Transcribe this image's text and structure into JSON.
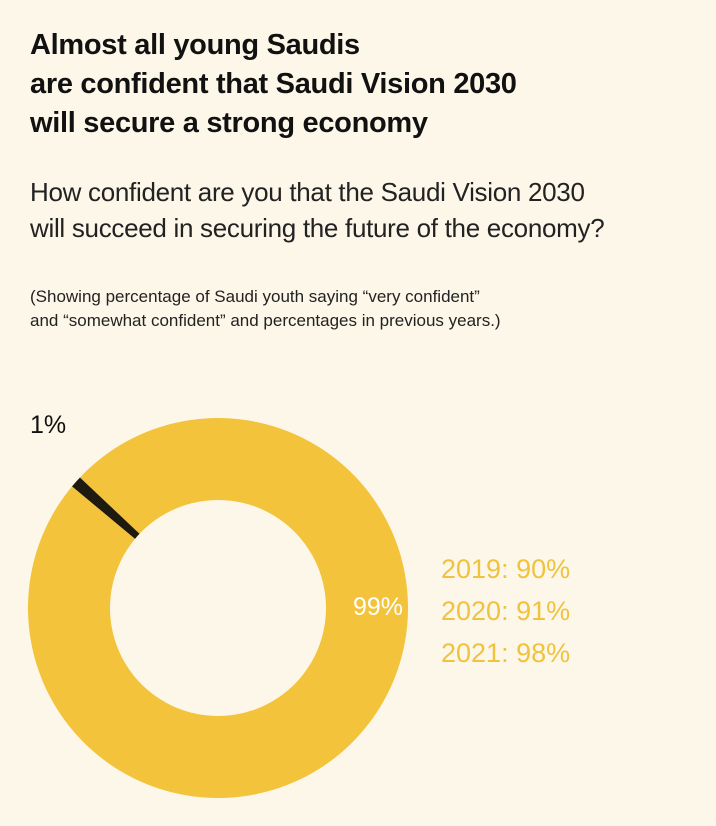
{
  "title_lines": [
    "Almost all young Saudis",
    "are confident that Saudi Vision 2030",
    "will secure a strong economy"
  ],
  "subtitle_lines": [
    "How confident are you that the Saudi Vision 2030",
    "will succeed in securing the future of the economy?"
  ],
  "note_lines": [
    "(Showing percentage of Saudi youth saying “very confident”",
    "and “somewhat confident” and percentages in previous years.)"
  ],
  "colors": {
    "background": "#fdf7e9",
    "confident": "#f3c33c",
    "not_confident": "#1e1a10",
    "previous_years_text": "#f0c23e",
    "inner_label": "#ffffff"
  },
  "chart_data": {
    "type": "pie",
    "variant": "donut",
    "slices": [
      {
        "label": "99%",
        "value": 99,
        "color": "#f3c33c"
      },
      {
        "label": "1%",
        "value": 1,
        "color": "#1e1a10"
      }
    ],
    "previous_years": [
      {
        "text": "2019: 90%",
        "year": 2019,
        "value": 90
      },
      {
        "text": "2020: 91%",
        "year": 2020,
        "value": 91
      },
      {
        "text": "2021: 98%",
        "year": 2021,
        "value": 98
      }
    ]
  }
}
